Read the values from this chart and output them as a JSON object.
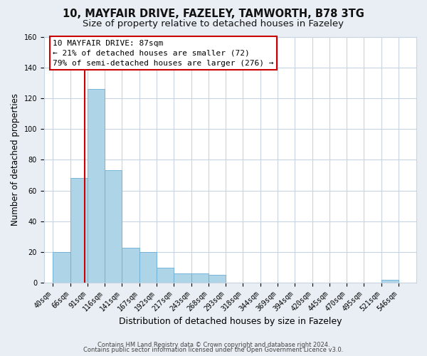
{
  "title1": "10, MAYFAIR DRIVE, FAZELEY, TAMWORTH, B78 3TG",
  "title2": "Size of property relative to detached houses in Fazeley",
  "xlabel": "Distribution of detached houses by size in Fazeley",
  "ylabel": "Number of detached properties",
  "bar_edges": [
    40,
    66,
    91,
    116,
    141,
    167,
    192,
    217,
    243,
    268,
    293,
    318,
    344,
    369,
    394,
    420,
    445,
    470,
    495,
    521,
    546
  ],
  "bar_heights": [
    20,
    68,
    126,
    73,
    23,
    20,
    10,
    6,
    6,
    5,
    0,
    0,
    0,
    0,
    0,
    0,
    0,
    0,
    0,
    2,
    0
  ],
  "bar_color": "#aed4e8",
  "bar_edge_color": "#6aaed6",
  "property_line_x": 87,
  "property_line_color": "#cc0000",
  "ylim": [
    0,
    160
  ],
  "xlim_left": 27,
  "xlim_right": 572,
  "annotation_line1": "10 MAYFAIR DRIVE: 87sqm",
  "annotation_line2": "← 21% of detached houses are smaller (72)",
  "annotation_line3": "79% of semi-detached houses are larger (276) →",
  "annotation_box_color": "#ffffff",
  "annotation_box_edge_color": "#cc0000",
  "footnote1": "Contains HM Land Registry data © Crown copyright and database right 2024.",
  "footnote2": "Contains public sector information licensed under the Open Government Licence v3.0.",
  "background_color": "#e8eef4",
  "plot_bg_color": "#ffffff",
  "grid_color": "#c8d4df",
  "title1_fontsize": 10.5,
  "title2_fontsize": 9.5,
  "tick_label_fontsize": 7,
  "ylabel_fontsize": 8.5,
  "xlabel_fontsize": 9,
  "annotation_fontsize": 8,
  "footnote_fontsize": 6
}
